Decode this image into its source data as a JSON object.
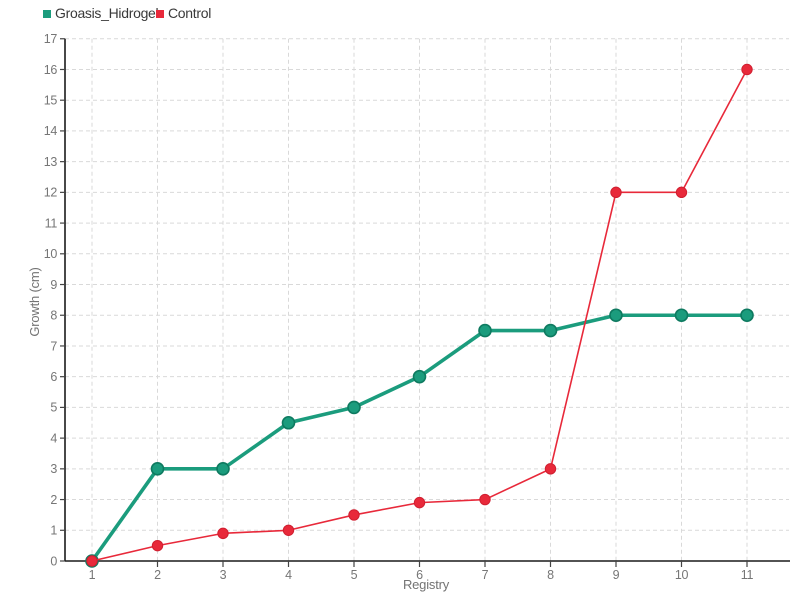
{
  "chart_data": {
    "type": "line",
    "x": [
      1,
      2,
      3,
      4,
      5,
      6,
      7,
      8,
      9,
      10,
      11
    ],
    "series": [
      {
        "name": "Groasis_Hidrogel",
        "color": "#1b9c7d",
        "marker_stroke": "#0e7a60",
        "values": [
          0,
          3,
          3,
          4.5,
          5,
          6,
          7.5,
          7.5,
          8,
          8,
          8
        ]
      },
      {
        "name": "Control",
        "color": "#e8293a",
        "marker_stroke": "#d01f30",
        "values": [
          0,
          0.5,
          0.9,
          1,
          1.5,
          1.9,
          2,
          3,
          12,
          12,
          16
        ]
      }
    ],
    "xlabel": "Registry",
    "ylabel": "Growth (cm)",
    "xlim": [
      1,
      11
    ],
    "ylim": [
      0,
      17
    ],
    "ytick_step": 1,
    "grid": "dashed",
    "grid_color": "#d9d9d9",
    "axis_color": "#1a1a1a",
    "tick_label_color": "#767676",
    "legend_position": "top-left"
  }
}
